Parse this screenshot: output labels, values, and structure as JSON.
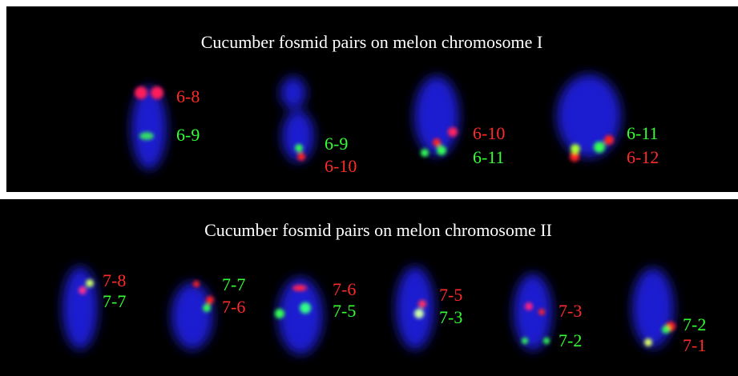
{
  "panels": [
    {
      "title": "Cucumber fosmid pairs on melon chromosome I",
      "chromosomes": [
        [
          "6-8",
          "6-9"
        ],
        [
          "6-9",
          "6-10"
        ],
        [
          "6-10",
          "6-11"
        ],
        [
          "6-11",
          "6-12"
        ]
      ]
    },
    {
      "title": "Cucumber fosmid pairs on melon chromosome II",
      "chromosomes": [
        [
          "7-8",
          "7-7"
        ],
        [
          "7-7",
          "7-6"
        ],
        [
          "7-6",
          "7-5"
        ],
        [
          "7-5",
          "7-3"
        ],
        [
          "7-3",
          "7-2"
        ],
        [
          "7-2",
          "7-1"
        ]
      ]
    }
  ]
}
